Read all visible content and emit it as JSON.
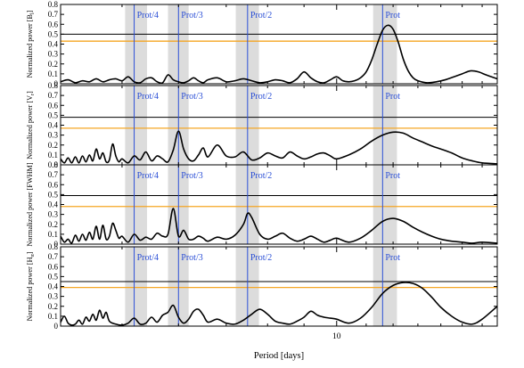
{
  "figure": {
    "xlabel": "Period [days]",
    "colors": {
      "band": "#dcdcdc",
      "vline": "#2b4fd6",
      "annotation": "#2b4fd6",
      "orange_threshold": "#f5a623",
      "black_threshold": "#000000",
      "curve": "#000000"
    }
  },
  "chart_data": [
    {
      "type": "line",
      "ylabel": "Normalized power [B",
      "ylabel_sub": "l",
      "ylabel_tail": "]",
      "x_scale": "log",
      "xlim": [
        4.1,
        16.8
      ],
      "ylim": [
        0,
        0.8
      ],
      "yticks": [
        "0",
        "0.1",
        "0.2",
        "0.3",
        "0.4",
        "0.5",
        "0.6",
        "0.7",
        "0.8"
      ],
      "thresholds": {
        "black": 0.5,
        "orange": 0.43
      },
      "annotations": [
        {
          "label": "Prot/4",
          "x": 5.2
        },
        {
          "label": "Prot/3",
          "x": 6.0
        },
        {
          "label": "Prot/2",
          "x": 7.5
        },
        {
          "label": "Prot",
          "x": 11.6
        }
      ],
      "shaded_bands": [
        [
          5.05,
          5.42
        ],
        [
          5.8,
          6.2
        ],
        [
          7.22,
          7.78
        ],
        [
          11.25,
          12.15
        ]
      ],
      "series": [
        {
          "x": [
            4.1,
            4.2,
            4.3,
            4.4,
            4.5,
            4.6,
            4.7,
            4.8,
            4.9,
            5.0,
            5.1,
            5.2,
            5.3,
            5.4,
            5.5,
            5.6,
            5.7,
            5.8,
            5.9,
            6.0,
            6.1,
            6.2,
            6.3,
            6.4,
            6.5,
            6.6,
            6.8,
            7.0,
            7.2,
            7.4,
            7.6,
            7.8,
            8.0,
            8.2,
            8.4,
            8.6,
            8.8,
            9.0,
            9.2,
            9.4,
            9.6,
            9.8,
            10.0,
            10.2,
            10.4,
            10.6,
            10.8,
            11.0,
            11.2,
            11.4,
            11.6,
            11.8,
            12.0,
            12.2,
            12.4,
            12.6,
            12.8,
            13.0,
            13.4,
            13.8,
            14.2,
            14.6,
            15.0,
            15.4,
            15.8,
            16.2,
            16.8
          ],
          "y": [
            0.02,
            0.04,
            0.01,
            0.03,
            0.02,
            0.05,
            0.02,
            0.04,
            0.05,
            0.03,
            0.07,
            0.02,
            0.01,
            0.05,
            0.06,
            0.02,
            0.01,
            0.09,
            0.04,
            0.02,
            0.01,
            0.03,
            0.06,
            0.03,
            0.01,
            0.04,
            0.06,
            0.02,
            0.03,
            0.05,
            0.03,
            0.01,
            0.02,
            0.04,
            0.03,
            0.01,
            0.05,
            0.12,
            0.06,
            0.02,
            0.01,
            0.04,
            0.07,
            0.03,
            0.02,
            0.03,
            0.06,
            0.12,
            0.24,
            0.4,
            0.54,
            0.59,
            0.55,
            0.42,
            0.25,
            0.13,
            0.06,
            0.03,
            0.01,
            0.02,
            0.04,
            0.07,
            0.1,
            0.13,
            0.12,
            0.09,
            0.05
          ]
        }
      ]
    },
    {
      "type": "line",
      "ylabel": "Normalized power [V",
      "ylabel_sub": "r",
      "ylabel_tail": "]",
      "x_scale": "log",
      "xlim": [
        4.1,
        16.8
      ],
      "ylim": [
        0,
        0.8
      ],
      "yticks": [
        "0",
        "0.1",
        "0.2",
        "0.3",
        "0.4",
        "0.5",
        "0.6",
        "0.7",
        "0.8"
      ],
      "thresholds": {
        "black": 0.48,
        "orange": 0.37
      },
      "annotations": [
        {
          "label": "Prot/4",
          "x": 5.2
        },
        {
          "label": "Prot/3",
          "x": 6.0
        },
        {
          "label": "Prot/2",
          "x": 7.5
        },
        {
          "label": "Prot",
          "x": 11.6
        }
      ],
      "shaded_bands": [
        [
          5.05,
          5.42
        ],
        [
          5.8,
          6.2
        ],
        [
          7.22,
          7.78
        ],
        [
          11.25,
          12.15
        ]
      ],
      "series": [
        {
          "x": [
            4.1,
            4.15,
            4.2,
            4.25,
            4.3,
            4.35,
            4.4,
            4.45,
            4.5,
            4.55,
            4.6,
            4.65,
            4.7,
            4.75,
            4.8,
            4.85,
            4.9,
            4.95,
            5.0,
            5.1,
            5.2,
            5.3,
            5.4,
            5.5,
            5.6,
            5.7,
            5.8,
            5.9,
            6.0,
            6.1,
            6.2,
            6.3,
            6.4,
            6.5,
            6.6,
            6.8,
            7.0,
            7.2,
            7.4,
            7.6,
            7.8,
            8.0,
            8.2,
            8.4,
            8.6,
            8.8,
            9.0,
            9.2,
            9.4,
            9.6,
            9.8,
            10.0,
            10.4,
            10.8,
            11.2,
            11.6,
            12.0,
            12.4,
            12.8,
            13.2,
            13.6,
            14.0,
            14.5,
            15.0,
            15.5,
            16.0,
            16.8
          ],
          "y": [
            0.06,
            0.02,
            0.07,
            0.02,
            0.08,
            0.02,
            0.09,
            0.03,
            0.1,
            0.04,
            0.16,
            0.06,
            0.12,
            0.03,
            0.05,
            0.21,
            0.09,
            0.03,
            0.06,
            0.02,
            0.09,
            0.05,
            0.13,
            0.04,
            0.09,
            0.06,
            0.03,
            0.15,
            0.34,
            0.16,
            0.06,
            0.04,
            0.1,
            0.17,
            0.08,
            0.2,
            0.09,
            0.08,
            0.13,
            0.05,
            0.07,
            0.12,
            0.09,
            0.07,
            0.13,
            0.09,
            0.06,
            0.08,
            0.11,
            0.12,
            0.09,
            0.06,
            0.1,
            0.16,
            0.24,
            0.3,
            0.33,
            0.32,
            0.27,
            0.23,
            0.19,
            0.16,
            0.12,
            0.07,
            0.04,
            0.02,
            0.01
          ]
        }
      ]
    },
    {
      "type": "line",
      "ylabel": "Normalized power [FWHM]",
      "x_scale": "log",
      "xlim": [
        4.1,
        16.8
      ],
      "ylim": [
        0,
        0.8
      ],
      "yticks": [
        "0",
        "0.1",
        "0.2",
        "0.3",
        "0.4",
        "0.5",
        "0.6",
        "0.7",
        "0.8"
      ],
      "thresholds": {
        "black": 0.49,
        "orange": 0.38
      },
      "annotations": [
        {
          "label": "Prot/4",
          "x": 5.2
        },
        {
          "label": "Prot/3",
          "x": 6.0
        },
        {
          "label": "Prot/2",
          "x": 7.5
        },
        {
          "label": "Prot",
          "x": 11.6
        }
      ],
      "shaded_bands": [
        [
          5.05,
          5.42
        ],
        [
          5.8,
          6.2
        ],
        [
          7.22,
          7.78
        ],
        [
          11.25,
          12.15
        ]
      ],
      "series": [
        {
          "x": [
            4.1,
            4.15,
            4.2,
            4.25,
            4.3,
            4.35,
            4.4,
            4.45,
            4.5,
            4.55,
            4.6,
            4.65,
            4.7,
            4.75,
            4.8,
            4.85,
            4.9,
            4.95,
            5.0,
            5.1,
            5.2,
            5.3,
            5.4,
            5.5,
            5.6,
            5.7,
            5.8,
            5.9,
            6.0,
            6.1,
            6.2,
            6.3,
            6.4,
            6.5,
            6.6,
            6.8,
            7.0,
            7.2,
            7.4,
            7.5,
            7.6,
            7.8,
            8.0,
            8.2,
            8.4,
            8.6,
            8.8,
            9.0,
            9.2,
            9.4,
            9.6,
            9.8,
            10.0,
            10.4,
            10.8,
            11.2,
            11.6,
            12.0,
            12.4,
            12.8,
            13.2,
            13.6,
            14.0,
            14.5,
            15.0,
            15.5,
            16.0,
            16.8
          ],
          "y": [
            0.08,
            0.02,
            0.05,
            0.01,
            0.09,
            0.03,
            0.1,
            0.04,
            0.12,
            0.05,
            0.18,
            0.05,
            0.19,
            0.05,
            0.08,
            0.21,
            0.14,
            0.06,
            0.08,
            0.02,
            0.1,
            0.04,
            0.07,
            0.05,
            0.11,
            0.08,
            0.1,
            0.36,
            0.08,
            0.14,
            0.05,
            0.05,
            0.08,
            0.06,
            0.03,
            0.07,
            0.05,
            0.09,
            0.2,
            0.31,
            0.27,
            0.1,
            0.05,
            0.08,
            0.11,
            0.06,
            0.03,
            0.05,
            0.08,
            0.05,
            0.02,
            0.04,
            0.06,
            0.02,
            0.06,
            0.14,
            0.23,
            0.26,
            0.23,
            0.17,
            0.12,
            0.08,
            0.05,
            0.03,
            0.02,
            0.01,
            0.02,
            0.01
          ]
        }
      ]
    },
    {
      "type": "line",
      "ylabel": "Normalized power [H",
      "ylabel_sub": "α",
      "ylabel_tail": "]",
      "x_scale": "log",
      "xlim": [
        4.1,
        16.8
      ],
      "ylim": [
        0,
        0.8
      ],
      "yticks": [
        "0",
        "0.1",
        "0.2",
        "0.3",
        "0.4",
        "0.5",
        "0.6",
        "0.7",
        "0.8"
      ],
      "xticks": [
        {
          "value": 10,
          "label": "10"
        }
      ],
      "thresholds": {
        "black": 0.45,
        "orange": 0.39
      },
      "annotations": [
        {
          "label": "Prot/4",
          "x": 5.2
        },
        {
          "label": "Prot/3",
          "x": 6.0
        },
        {
          "label": "Prot/2",
          "x": 7.5
        },
        {
          "label": "Prot",
          "x": 11.6
        }
      ],
      "shaded_bands": [
        [
          5.05,
          5.42
        ],
        [
          5.8,
          6.2
        ],
        [
          7.22,
          7.78
        ],
        [
          11.25,
          12.15
        ]
      ],
      "series": [
        {
          "x": [
            4.1,
            4.15,
            4.2,
            4.25,
            4.3,
            4.35,
            4.4,
            4.45,
            4.5,
            4.55,
            4.6,
            4.65,
            4.7,
            4.75,
            4.8,
            4.9,
            5.0,
            5.1,
            5.2,
            5.3,
            5.4,
            5.5,
            5.6,
            5.7,
            5.8,
            5.9,
            6.0,
            6.1,
            6.2,
            6.3,
            6.4,
            6.5,
            6.6,
            6.8,
            7.0,
            7.2,
            7.4,
            7.6,
            7.8,
            8.0,
            8.2,
            8.4,
            8.6,
            8.8,
            9.0,
            9.2,
            9.4,
            9.6,
            9.8,
            10.0,
            10.4,
            10.8,
            11.2,
            11.6,
            12.0,
            12.4,
            12.8,
            13.2,
            13.6,
            14.0,
            14.5,
            15.0,
            15.5,
            16.0,
            16.8
          ],
          "y": [
            0.04,
            0.1,
            0.03,
            0.01,
            0.02,
            0.06,
            0.02,
            0.09,
            0.05,
            0.12,
            0.06,
            0.16,
            0.08,
            0.14,
            0.05,
            0.02,
            0.01,
            0.03,
            0.08,
            0.02,
            0.03,
            0.09,
            0.04,
            0.11,
            0.14,
            0.21,
            0.09,
            0.03,
            0.07,
            0.15,
            0.17,
            0.11,
            0.04,
            0.07,
            0.03,
            0.02,
            0.06,
            0.12,
            0.17,
            0.12,
            0.05,
            0.03,
            0.02,
            0.05,
            0.09,
            0.15,
            0.11,
            0.09,
            0.08,
            0.07,
            0.03,
            0.08,
            0.19,
            0.33,
            0.41,
            0.44,
            0.43,
            0.38,
            0.29,
            0.19,
            0.1,
            0.04,
            0.02,
            0.07,
            0.2
          ]
        }
      ]
    }
  ]
}
